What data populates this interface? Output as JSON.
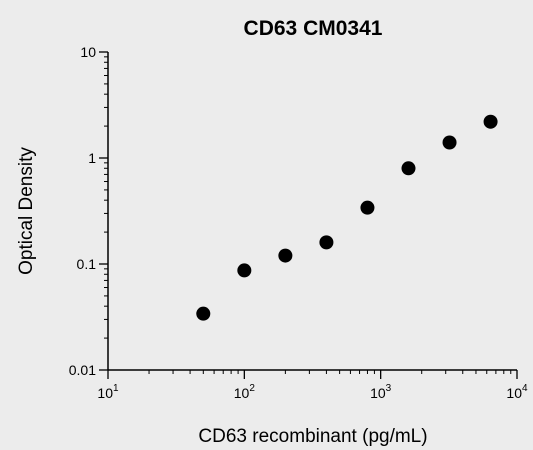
{
  "chart_data": {
    "type": "scatter",
    "title": "CD63 CM0341",
    "xlabel": "CD63 recombinant (pg/mL)",
    "ylabel": "Optical Density",
    "x_scale": "log",
    "y_scale": "log",
    "xlim": [
      10,
      10000
    ],
    "ylim": [
      0.01,
      10
    ],
    "grid": false,
    "x_ticks": [
      {
        "value": 10,
        "base": "10",
        "exp": "1"
      },
      {
        "value": 100,
        "base": "10",
        "exp": "2"
      },
      {
        "value": 1000,
        "base": "10",
        "exp": "3"
      },
      {
        "value": 10000,
        "base": "10",
        "exp": "4"
      }
    ],
    "y_ticks": [
      {
        "value": 0.01,
        "label": "0.01"
      },
      {
        "value": 0.1,
        "label": "0.1"
      },
      {
        "value": 1,
        "label": "1"
      },
      {
        "value": 10,
        "label": "10"
      }
    ],
    "x": [
      50,
      100,
      200,
      400,
      800,
      1600,
      3200,
      6400
    ],
    "y": [
      0.034,
      0.087,
      0.12,
      0.16,
      0.34,
      0.8,
      1.4,
      2.2
    ],
    "marker_color": "#000000"
  }
}
